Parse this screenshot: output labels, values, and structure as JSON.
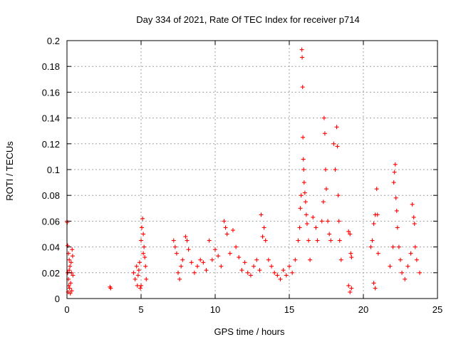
{
  "chart_data": {
    "type": "scatter",
    "title": "Day 334 of 2021, Rate Of TEC Index for receiver p714",
    "xlabel": "GPS time / hours",
    "ylabel": "ROTI / TECUs",
    "xlim": [
      0,
      25
    ],
    "ylim": [
      0,
      0.2
    ],
    "x_ticks": [
      "0",
      "5",
      "10",
      "15",
      "20",
      "25"
    ],
    "y_ticks": [
      "0",
      "0.02",
      "0.04",
      "0.06",
      "0.08",
      "0.1",
      "0.12",
      "0.14",
      "0.16",
      "0.18",
      "0.2"
    ],
    "x_tick_values": [
      0,
      5,
      10,
      15,
      20,
      25
    ],
    "y_tick_values": [
      0,
      0.02,
      0.04,
      0.06,
      0.08,
      0.1,
      0.12,
      0.14,
      0.16,
      0.18,
      0.2
    ],
    "grid": true,
    "marker": "+",
    "color": "#ff0000",
    "points": [
      [
        0.0,
        0.06
      ],
      [
        0.02,
        0.059
      ],
      [
        0.05,
        0.041
      ],
      [
        0.1,
        0.035
      ],
      [
        0.15,
        0.03
      ],
      [
        0.2,
        0.025
      ],
      [
        0.05,
        0.02
      ],
      [
        0.1,
        0.015
      ],
      [
        0.12,
        0.01
      ],
      [
        0.18,
        0.008
      ],
      [
        0.25,
        0.012
      ],
      [
        0.3,
        0.02
      ],
      [
        0.35,
        0.038
      ],
      [
        0.38,
        0.033
      ],
      [
        0.4,
        0.018
      ],
      [
        0.08,
        0.005
      ],
      [
        0.22,
        0.004
      ],
      [
        0.32,
        0.006
      ],
      [
        0.28,
        0.028
      ],
      [
        0.15,
        0.022
      ],
      [
        2.9,
        0.009
      ],
      [
        2.95,
        0.008
      ],
      [
        4.5,
        0.02
      ],
      [
        4.6,
        0.015
      ],
      [
        4.7,
        0.025
      ],
      [
        4.75,
        0.01
      ],
      [
        4.8,
        0.018
      ],
      [
        4.9,
        0.028
      ],
      [
        5.0,
        0.045
      ],
      [
        5.05,
        0.055
      ],
      [
        5.1,
        0.062
      ],
      [
        5.15,
        0.05
      ],
      [
        5.2,
        0.04
      ],
      [
        5.25,
        0.032
      ],
      [
        5.3,
        0.025
      ],
      [
        5.35,
        0.015
      ],
      [
        5.0,
        0.01
      ],
      [
        4.95,
        0.008
      ],
      [
        5.15,
        0.035
      ],
      [
        4.85,
        0.022
      ],
      [
        7.2,
        0.045
      ],
      [
        7.3,
        0.04
      ],
      [
        7.4,
        0.035
      ],
      [
        7.5,
        0.02
      ],
      [
        7.6,
        0.015
      ],
      [
        7.7,
        0.025
      ],
      [
        7.8,
        0.03
      ],
      [
        8.0,
        0.048
      ],
      [
        8.1,
        0.045
      ],
      [
        8.2,
        0.038
      ],
      [
        8.4,
        0.028
      ],
      [
        8.6,
        0.02
      ],
      [
        8.8,
        0.025
      ],
      [
        9.0,
        0.03
      ],
      [
        9.2,
        0.028
      ],
      [
        9.4,
        0.022
      ],
      [
        9.6,
        0.045
      ],
      [
        9.8,
        0.03
      ],
      [
        10.0,
        0.038
      ],
      [
        10.2,
        0.033
      ],
      [
        10.4,
        0.025
      ],
      [
        10.6,
        0.06
      ],
      [
        10.7,
        0.055
      ],
      [
        10.8,
        0.05
      ],
      [
        11.0,
        0.035
      ],
      [
        11.2,
        0.053
      ],
      [
        11.4,
        0.04
      ],
      [
        11.6,
        0.032
      ],
      [
        11.8,
        0.022
      ],
      [
        12.0,
        0.028
      ],
      [
        12.2,
        0.02
      ],
      [
        12.4,
        0.018
      ],
      [
        12.6,
        0.025
      ],
      [
        12.8,
        0.03
      ],
      [
        13.0,
        0.022
      ],
      [
        13.1,
        0.065
      ],
      [
        13.2,
        0.048
      ],
      [
        13.3,
        0.055
      ],
      [
        13.4,
        0.045
      ],
      [
        13.6,
        0.03
      ],
      [
        13.8,
        0.025
      ],
      [
        14.0,
        0.02
      ],
      [
        14.2,
        0.018
      ],
      [
        14.4,
        0.015
      ],
      [
        14.6,
        0.022
      ],
      [
        14.8,
        0.018
      ],
      [
        15.0,
        0.025
      ],
      [
        15.2,
        0.02
      ],
      [
        15.4,
        0.03
      ],
      [
        15.6,
        0.045
      ],
      [
        15.7,
        0.055
      ],
      [
        15.75,
        0.07
      ],
      [
        15.8,
        0.08
      ],
      [
        15.85,
        0.193
      ],
      [
        15.87,
        0.187
      ],
      [
        15.9,
        0.164
      ],
      [
        15.92,
        0.125
      ],
      [
        15.95,
        0.108
      ],
      [
        15.97,
        0.1
      ],
      [
        16.0,
        0.09
      ],
      [
        16.05,
        0.082
      ],
      [
        16.1,
        0.075
      ],
      [
        16.15,
        0.065
      ],
      [
        16.2,
        0.058
      ],
      [
        16.3,
        0.045
      ],
      [
        16.4,
        0.03
      ],
      [
        16.6,
        0.063
      ],
      [
        16.8,
        0.055
      ],
      [
        16.9,
        0.045
      ],
      [
        17.2,
        0.06
      ],
      [
        17.3,
        0.075
      ],
      [
        17.35,
        0.14
      ],
      [
        17.4,
        0.128
      ],
      [
        17.45,
        0.1
      ],
      [
        17.5,
        0.085
      ],
      [
        17.6,
        0.06
      ],
      [
        17.7,
        0.05
      ],
      [
        17.8,
        0.045
      ],
      [
        18.0,
        0.12
      ],
      [
        18.1,
        0.1
      ],
      [
        18.2,
        0.133
      ],
      [
        18.25,
        0.118
      ],
      [
        18.3,
        0.08
      ],
      [
        18.35,
        0.06
      ],
      [
        18.4,
        0.045
      ],
      [
        18.5,
        0.03
      ],
      [
        19.0,
        0.052
      ],
      [
        19.1,
        0.05
      ],
      [
        19.15,
        0.035
      ],
      [
        19.2,
        0.032
      ],
      [
        19.0,
        0.01
      ],
      [
        19.1,
        0.005
      ],
      [
        19.2,
        0.008
      ],
      [
        20.5,
        0.04
      ],
      [
        20.6,
        0.045
      ],
      [
        20.7,
        0.058
      ],
      [
        20.8,
        0.065
      ],
      [
        20.9,
        0.085
      ],
      [
        20.95,
        0.065
      ],
      [
        21.0,
        0.035
      ],
      [
        20.7,
        0.012
      ],
      [
        20.8,
        0.008
      ],
      [
        21.8,
        0.025
      ],
      [
        22.0,
        0.04
      ],
      [
        22.05,
        0.09
      ],
      [
        22.1,
        0.098
      ],
      [
        22.15,
        0.104
      ],
      [
        22.2,
        0.078
      ],
      [
        22.25,
        0.068
      ],
      [
        22.3,
        0.055
      ],
      [
        22.4,
        0.04
      ],
      [
        22.5,
        0.03
      ],
      [
        22.6,
        0.02
      ],
      [
        22.8,
        0.015
      ],
      [
        23.0,
        0.025
      ],
      [
        23.2,
        0.035
      ],
      [
        23.3,
        0.073
      ],
      [
        23.4,
        0.063
      ],
      [
        23.45,
        0.058
      ],
      [
        23.5,
        0.04
      ],
      [
        23.6,
        0.03
      ],
      [
        23.8,
        0.02
      ]
    ]
  }
}
